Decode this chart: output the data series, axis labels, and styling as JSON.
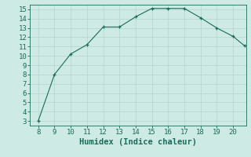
{
  "x": [
    8,
    9,
    10,
    11,
    12,
    13,
    14,
    15,
    16,
    17,
    18,
    19,
    20,
    20.7
  ],
  "y": [
    3,
    8,
    10.2,
    11.2,
    13.1,
    13.1,
    14.2,
    15.1,
    15.1,
    15.1,
    14.1,
    13.0,
    12.1,
    11.1
  ],
  "line_color": "#1a6b5a",
  "marker": "+",
  "marker_color": "#1a6b5a",
  "bg_color": "#cdeae4",
  "grid_color": "#b8d8d0",
  "xlabel": "Humidex (Indice chaleur)",
  "xlim": [
    7.5,
    20.8
  ],
  "ylim": [
    2.5,
    15.5
  ],
  "xticks": [
    8,
    9,
    10,
    11,
    12,
    13,
    14,
    15,
    16,
    17,
    18,
    19,
    20
  ],
  "yticks": [
    3,
    4,
    5,
    6,
    7,
    8,
    9,
    10,
    11,
    12,
    13,
    14,
    15
  ],
  "tick_color": "#1a6b5a",
  "label_color": "#1a6b5a",
  "tick_fontsize": 6.5,
  "xlabel_fontsize": 7.5
}
